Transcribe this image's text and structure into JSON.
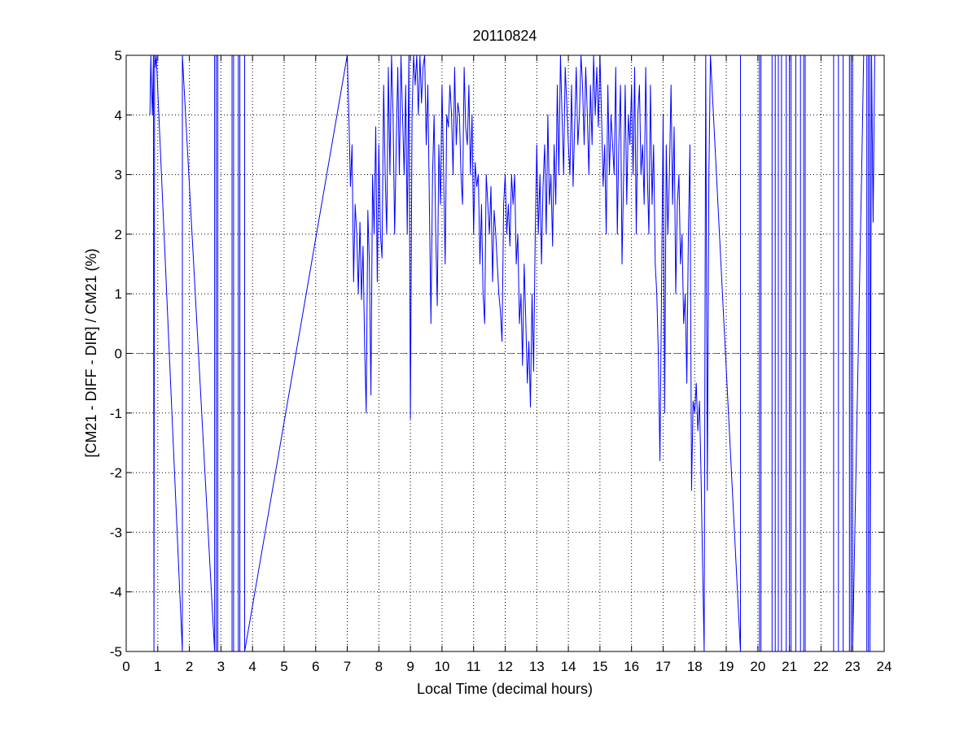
{
  "chart_data": {
    "type": "line",
    "title": "20110824",
    "xlabel": "Local Time (decimal hours)",
    "ylabel": "[CM21 - DIFF - DIR] / CM21 (%)",
    "xlim": [
      0,
      24
    ],
    "ylim": [
      -5,
      5
    ],
    "xticks": [
      "0",
      "1",
      "2",
      "3",
      "4",
      "5",
      "6",
      "7",
      "8",
      "9",
      "10",
      "11",
      "12",
      "13",
      "14",
      "15",
      "16",
      "17",
      "18",
      "19",
      "20",
      "21",
      "22",
      "23",
      "24"
    ],
    "yticks": [
      "-5",
      "-4",
      "-3",
      "-2",
      "-1",
      "0",
      "1",
      "2",
      "3",
      "4",
      "5"
    ],
    "grid": true,
    "reference_line": {
      "y": 0,
      "style": "dashed",
      "color": "#c0504d"
    },
    "series_color": "#0000ff",
    "series": [
      {
        "x": [
          0.75,
          0.78,
          0.8,
          0.83,
          0.86,
          0.88,
          0.9,
          0.9,
          0.92,
          0.95,
          1.78,
          1.78,
          2.8,
          2.8,
          2.85,
          2.85,
          2.9,
          2.9,
          3.35,
          3.35,
          3.4,
          3.4,
          3.55,
          3.55,
          3.6,
          3.6,
          3.75,
          3.75,
          7.0,
          7.05,
          7.1,
          7.15,
          7.2,
          7.25,
          7.3,
          7.35,
          7.4,
          7.45,
          7.5,
          7.55,
          7.6,
          7.65,
          7.7,
          7.75,
          7.8,
          7.85,
          7.9,
          7.95,
          8.0,
          8.05,
          8.1,
          8.15,
          8.2,
          8.25,
          8.3,
          8.35,
          8.4,
          8.45,
          8.5,
          8.55,
          8.6,
          8.65,
          8.7,
          8.75,
          8.8,
          8.85,
          8.9,
          8.95,
          9.0,
          9.05,
          9.1,
          9.15,
          9.2,
          9.25,
          9.3,
          9.35,
          9.4,
          9.45,
          9.5,
          9.55,
          9.6,
          9.65,
          9.7,
          9.75,
          9.8,
          9.85,
          9.9,
          9.95,
          10.0,
          10.05,
          10.1,
          10.15,
          10.2,
          10.25,
          10.3,
          10.35,
          10.4,
          10.45,
          10.5,
          10.55,
          10.6,
          10.65,
          10.7,
          10.75,
          10.8,
          10.85,
          10.9,
          10.95,
          11.0,
          11.05,
          11.1,
          11.15,
          11.2,
          11.25,
          11.3,
          11.35,
          11.4,
          11.45,
          11.5,
          11.55,
          11.6,
          11.65,
          11.7,
          11.75,
          11.8,
          11.85,
          11.9,
          11.95,
          12.0,
          12.05,
          12.1,
          12.15,
          12.2,
          12.25,
          12.3,
          12.35,
          12.4,
          12.45,
          12.5,
          12.55,
          12.6,
          12.65,
          12.7,
          12.75,
          12.8,
          12.85,
          12.9,
          12.95,
          13.0,
          13.05,
          13.1,
          13.15,
          13.2,
          13.25,
          13.3,
          13.35,
          13.4,
          13.45,
          13.5,
          13.55,
          13.6,
          13.65,
          13.7,
          13.75,
          13.8,
          13.85,
          13.9,
          13.95,
          14.0,
          14.05,
          14.1,
          14.15,
          14.2,
          14.25,
          14.3,
          14.35,
          14.4,
          14.45,
          14.5,
          14.55,
          14.6,
          14.65,
          14.7,
          14.75,
          14.8,
          14.85,
          14.9,
          14.95,
          15.0,
          15.05,
          15.1,
          15.15,
          15.2,
          15.25,
          15.3,
          15.35,
          15.4,
          15.45,
          15.5,
          15.55,
          15.6,
          15.65,
          15.7,
          15.75,
          15.8,
          15.85,
          15.9,
          15.95,
          16.0,
          16.05,
          16.1,
          16.15,
          16.2,
          16.25,
          16.3,
          16.35,
          16.4,
          16.45,
          16.5,
          16.55,
          16.6,
          16.65,
          16.7,
          16.75,
          16.8,
          16.85,
          16.9,
          16.95,
          17.0,
          17.05,
          17.1,
          17.15,
          17.2,
          17.25,
          17.3,
          17.35,
          17.4,
          17.45,
          17.5,
          17.55,
          17.6,
          17.65,
          17.7,
          17.75,
          17.8,
          17.85,
          17.9,
          17.95,
          18.0,
          18.05,
          18.1,
          18.15,
          18.2,
          18.25,
          18.3,
          18.35,
          18.4,
          18.45,
          18.5,
          19.45,
          19.45,
          20.05,
          20.05,
          20.1,
          20.1,
          20.45,
          20.45,
          20.55,
          20.55,
          20.65,
          20.65,
          20.75,
          20.75,
          20.9,
          20.9,
          21.0,
          21.0,
          21.05,
          21.05,
          21.2,
          21.2,
          21.35,
          21.35,
          21.45,
          21.45,
          21.5,
          21.5,
          22.4,
          22.4,
          22.55,
          22.55,
          22.7,
          22.7,
          22.9,
          22.9,
          22.95,
          22.95,
          23.0,
          23.0,
          23.3,
          23.35,
          23.45,
          23.45,
          23.5,
          23.5,
          23.55,
          23.55,
          23.6,
          23.65,
          23.7,
          23.75
        ],
        "y": [
          4.0,
          5.0,
          4.5,
          4.0,
          5.0,
          -5.0,
          5.0,
          5.0,
          4.8,
          5.0,
          -5.0,
          5.0,
          -5.0,
          5.0,
          5.0,
          -5.0,
          -5.0,
          5.0,
          5.0,
          -5.0,
          -5.0,
          5.0,
          5.0,
          -5.0,
          -5.0,
          5.0,
          5.0,
          -5.0,
          5.0,
          4.0,
          2.8,
          3.5,
          1.2,
          2.5,
          2.0,
          1.0,
          2.2,
          0.9,
          1.8,
          0.1,
          -1.0,
          2.4,
          1.5,
          -0.7,
          3.0,
          2.0,
          3.8,
          1.2,
          3.5,
          2.0,
          1.6,
          4.5,
          3.0,
          2.0,
          4.8,
          3.0,
          5.0,
          4.0,
          2.0,
          3.5,
          4.8,
          3.0,
          5.0,
          4.0,
          3.0,
          4.5,
          2.0,
          5.0,
          -1.1,
          4.0,
          5.0,
          4.5,
          5.0,
          4.0,
          5.0,
          4.2,
          4.8,
          5.0,
          3.5,
          4.5,
          2.5,
          0.5,
          3.0,
          4.0,
          2.0,
          0.8,
          3.5,
          2.5,
          4.5,
          3.0,
          1.5,
          4.0,
          3.8,
          4.5,
          4.0,
          3.0,
          4.8,
          3.5,
          4.2,
          4.0,
          3.0,
          2.5,
          4.8,
          3.8,
          3.5,
          4.5,
          3.0,
          4.0,
          2.0,
          3.2,
          2.8,
          3.0,
          1.5,
          2.5,
          1.0,
          0.5,
          3.0,
          2.5,
          2.0,
          2.8,
          1.2,
          2.4,
          2.0,
          1.5,
          1.0,
          0.7,
          0.2,
          2.5,
          3.0,
          2.0,
          2.5,
          1.8,
          3.0,
          2.5,
          3.0,
          1.5,
          2.0,
          0.5,
          1.0,
          -0.2,
          1.5,
          0.6,
          -0.5,
          0.2,
          -0.9,
          1.0,
          -0.3,
          2.0,
          3.5,
          2.0,
          3.0,
          1.5,
          2.8,
          3.5,
          2.0,
          4.0,
          2.5,
          3.0,
          1.8,
          3.5,
          2.5,
          4.5,
          3.0,
          5.0,
          4.0,
          3.0,
          4.8,
          4.2,
          3.5,
          3.0,
          4.5,
          2.8,
          3.8,
          4.8,
          3.5,
          4.0,
          5.0,
          4.5,
          3.5,
          4.8,
          4.0,
          3.0,
          4.5,
          3.5,
          5.0,
          4.0,
          4.8,
          3.8,
          5.0,
          4.0,
          2.8,
          3.5,
          2.0,
          4.5,
          3.0,
          4.0,
          3.5,
          3.0,
          4.8,
          2.0,
          3.5,
          4.5,
          1.5,
          3.0,
          4.5,
          2.5,
          4.0,
          3.5,
          4.5,
          3.0,
          4.8,
          2.0,
          4.0,
          4.5,
          3.0,
          3.5,
          2.5,
          4.8,
          3.0,
          2.0,
          4.5,
          2.5,
          3.5,
          1.5,
          1.0,
          0.0,
          -1.8,
          1.0,
          4.0,
          -1.0,
          3.5,
          2.0,
          3.0,
          4.5,
          2.5,
          3.8,
          1.0,
          2.5,
          3.0,
          1.5,
          2.0,
          0.5,
          1.0,
          -0.5,
          2.0,
          3.5,
          -2.3,
          -0.8,
          -1.0,
          -0.5,
          -1.3,
          -0.8,
          -2.0,
          -3.5,
          -5.0,
          5.0,
          -2.3,
          3.0,
          5.0,
          -5.0,
          5.0,
          5.0,
          -5.0,
          -5.0,
          5.0,
          5.0,
          -5.0,
          -5.0,
          5.0,
          5.0,
          -5.0,
          -5.0,
          5.0,
          5.0,
          -5.0,
          -5.0,
          5.0,
          5.0,
          -5.0,
          -5.0,
          5.0,
          5.0,
          -5.0,
          -5.0,
          5.0,
          5.0,
          -5.0,
          -5.0,
          5.0,
          5.0,
          -5.0,
          -5.0,
          5.0,
          5.0,
          -5.0,
          -5.0,
          5.0,
          5.0,
          -5.0,
          3.4,
          5.0,
          5.0,
          -5.0,
          -5.0,
          5.0,
          5.0,
          -5.0,
          5.0,
          2.2,
          5.0,
          5.0
        ]
      }
    ]
  }
}
